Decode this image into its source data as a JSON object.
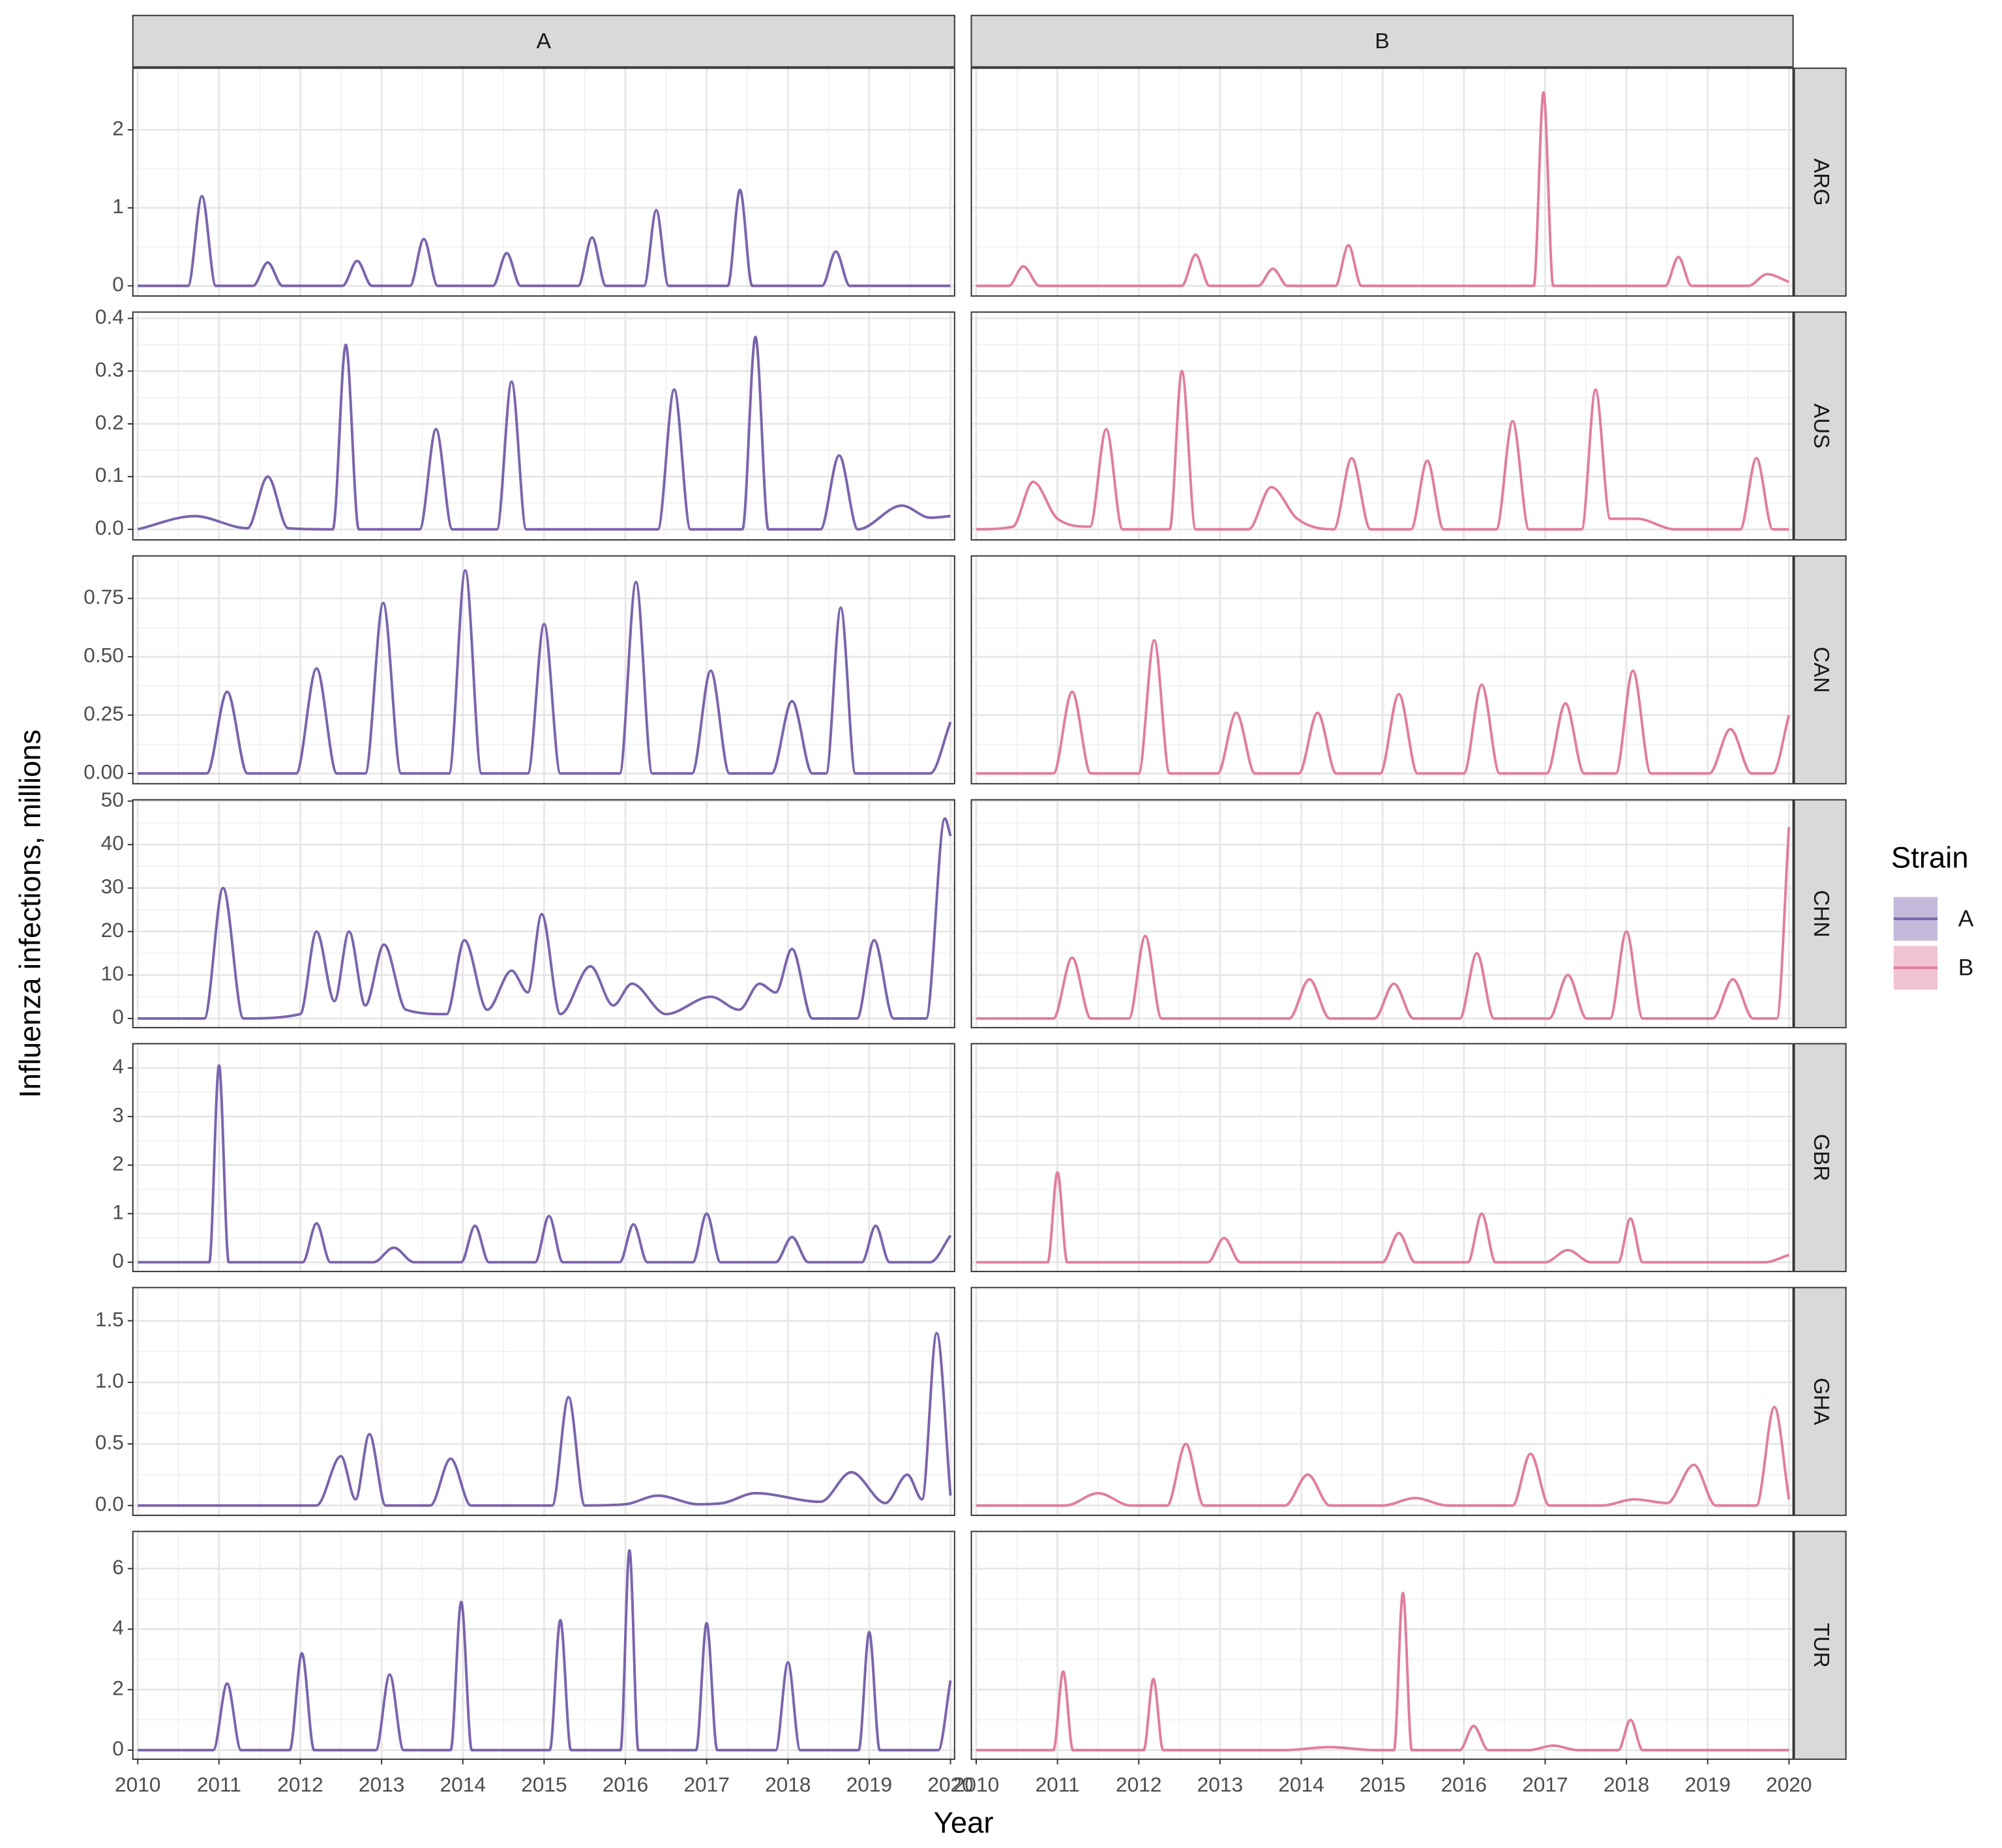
{
  "chart_data": {
    "type": "line",
    "xlabel": "Year",
    "ylabel": "Influenza infections, millions",
    "legend_title": "Strain",
    "xlim": [
      2009.94,
      2020.05
    ],
    "xticks": [
      2010,
      2011,
      2012,
      2013,
      2014,
      2015,
      2016,
      2017,
      2018,
      2019,
      2020
    ],
    "grid": true,
    "series": [
      {
        "name": "A",
        "color": "#7a64ad"
      },
      {
        "name": "B",
        "color": "#e17d9f"
      }
    ],
    "rows": [
      {
        "label": "ARG",
        "ylim": [
          -0.13,
          2.79
        ],
        "yticks": [
          0,
          1,
          2
        ],
        "panels": [
          {
            "x": [
              2010,
              2010.62,
              2010.79,
              2010.96,
              2011.42,
              2011.6,
              2011.78,
              2012.52,
              2012.7,
              2012.88,
              2013.35,
              2013.52,
              2013.69,
              2014.37,
              2014.54,
              2014.71,
              2015.42,
              2015.59,
              2015.76,
              2016.23,
              2016.38,
              2016.53,
              2017.26,
              2017.41,
              2017.56,
              2018.42,
              2018.59,
              2018.76,
              2020
            ],
            "values": [
              0,
              0,
              1.15,
              0,
              0,
              0.3,
              0,
              0,
              0.32,
              0,
              0,
              0.6,
              0,
              0,
              0.42,
              0,
              0,
              0.62,
              0,
              0,
              0.97,
              0,
              0,
              1.23,
              0,
              0,
              0.44,
              0,
              0
            ]
          },
          {
            "x": [
              2010,
              2010.4,
              2010.58,
              2010.78,
              2012.53,
              2012.7,
              2012.87,
              2013.47,
              2013.65,
              2013.83,
              2014.42,
              2014.58,
              2014.74,
              2016.86,
              2016.98,
              2017.1,
              2018.48,
              2018.64,
              2018.8,
              2019.5,
              2019.73,
              2020
            ],
            "values": [
              0,
              0,
              0.25,
              0,
              0,
              0.4,
              0,
              0,
              0.22,
              0,
              0,
              0.52,
              0,
              0,
              2.48,
              0,
              0,
              0.37,
              0,
              0,
              0.15,
              0.05
            ]
          }
        ]
      },
      {
        "label": "AUS",
        "ylim": [
          -0.02,
          0.412
        ],
        "yticks": [
          {
            "value": 0,
            "label": "0.0"
          },
          {
            "value": 0.1,
            "label": "0.1"
          },
          {
            "value": 0.2,
            "label": "0.2"
          },
          {
            "value": 0.3,
            "label": "0.3"
          },
          {
            "value": 0.4,
            "label": "0.4"
          }
        ],
        "panels": [
          {
            "x": [
              2010,
              2010.7,
              2011.35,
              2011.6,
              2011.85,
              2012.4,
              2012.56,
              2012.72,
              2013.47,
              2013.67,
              2013.87,
              2014.42,
              2014.6,
              2014.78,
              2016.4,
              2016.6,
              2016.8,
              2017.44,
              2017.6,
              2017.76,
              2018.4,
              2018.63,
              2018.86,
              2019.4,
              2019.75,
              2020
            ],
            "values": [
              0,
              0.025,
              0.002,
              0.1,
              0.002,
              0,
              0.35,
              0,
              0,
              0.19,
              0,
              0,
              0.28,
              0,
              0,
              0.265,
              0,
              0,
              0.365,
              0,
              0,
              0.14,
              0,
              0.045,
              0.022,
              0.025
            ]
          },
          {
            "x": [
              2010,
              2010.45,
              2010.7,
              2011.0,
              2011.4,
              2011.6,
              2011.8,
              2012.38,
              2012.53,
              2012.7,
              2013.35,
              2013.63,
              2013.95,
              2014.4,
              2014.62,
              2014.85,
              2015.35,
              2015.55,
              2015.75,
              2016.4,
              2016.6,
              2016.8,
              2017.45,
              2017.62,
              2017.8,
              2018.13,
              2018.6,
              2019.4,
              2019.6,
              2019.8,
              2020
            ],
            "values": [
              0,
              0.005,
              0.09,
              0.02,
              0.005,
              0.19,
              0,
              0,
              0.3,
              0,
              0,
              0.08,
              0.02,
              0,
              0.135,
              0,
              0,
              0.13,
              0,
              0,
              0.205,
              0,
              0,
              0.265,
              0.02,
              0.02,
              0,
              0,
              0.135,
              0,
              0
            ]
          }
        ]
      },
      {
        "label": "CAN",
        "ylim": [
          -0.044,
          0.932
        ],
        "yticks": [
          {
            "value": 0,
            "label": "0.00"
          },
          {
            "value": 0.25,
            "label": "0.25"
          },
          {
            "value": 0.5,
            "label": "0.50"
          },
          {
            "value": 0.75,
            "label": "0.75"
          }
        ],
        "panels": [
          {
            "x": [
              2010,
              2010.85,
              2011.1,
              2011.35,
              2011.95,
              2012.2,
              2012.45,
              2012.8,
              2013.02,
              2013.24,
              2013.83,
              2014.03,
              2014.23,
              2014.8,
              2015.0,
              2015.2,
              2015.93,
              2016.13,
              2016.33,
              2016.82,
              2017.05,
              2017.28,
              2017.8,
              2018.05,
              2018.3,
              2018.47,
              2018.65,
              2018.83,
              2019.75,
              2020
            ],
            "values": [
              0,
              0,
              0.35,
              0,
              0,
              0.45,
              0,
              0,
              0.73,
              0,
              0,
              0.87,
              0,
              0,
              0.64,
              0,
              0,
              0.82,
              0,
              0,
              0.44,
              0,
              0,
              0.31,
              0,
              0,
              0.71,
              0,
              0,
              0.22
            ]
          },
          {
            "x": [
              2010,
              2010.95,
              2011.18,
              2011.41,
              2012.0,
              2012.19,
              2012.38,
              2012.97,
              2013.2,
              2013.43,
              2013.97,
              2014.2,
              2014.43,
              2014.97,
              2015.2,
              2015.43,
              2016.0,
              2016.22,
              2016.44,
              2017.02,
              2017.25,
              2017.48,
              2017.87,
              2018.08,
              2018.3,
              2019.02,
              2019.28,
              2019.54,
              2019.8,
              2020
            ],
            "values": [
              0,
              0,
              0.35,
              0,
              0,
              0.57,
              0,
              0,
              0.26,
              0,
              0,
              0.26,
              0,
              0,
              0.34,
              0,
              0,
              0.38,
              0,
              0,
              0.3,
              0,
              0,
              0.44,
              0,
              0,
              0.19,
              0,
              0,
              0.25
            ]
          }
        ]
      },
      {
        "label": "CHN",
        "ylim": [
          -2.1,
          50.3
        ],
        "yticks": [
          0,
          10,
          20,
          30,
          40,
          50
        ],
        "panels": [
          {
            "x": [
              2010,
              2010.82,
              2011.05,
              2011.3,
              2012.0,
              2012.2,
              2012.42,
              2012.6,
              2012.8,
              2013.03,
              2013.3,
              2013.8,
              2014.02,
              2014.3,
              2014.6,
              2014.8,
              2014.97,
              2015.2,
              2015.57,
              2015.85,
              2016.08,
              2016.5,
              2017.05,
              2017.4,
              2017.65,
              2017.85,
              2018.05,
              2018.3,
              2018.85,
              2019.06,
              2019.3,
              2019.7,
              2019.93,
              2020
            ],
            "values": [
              0,
              0,
              30,
              0,
              1,
              20,
              4,
              20,
              3,
              17,
              2,
              1,
              18,
              2,
              11,
              6,
              24,
              1,
              12,
              3,
              8,
              1,
              5,
              2,
              8,
              6,
              16,
              0,
              0,
              18,
              0,
              0,
              46,
              42
            ]
          },
          {
            "x": [
              2010,
              2010.95,
              2011.18,
              2011.41,
              2011.88,
              2012.08,
              2012.28,
              2013.85,
              2014.1,
              2014.35,
              2014.9,
              2015.14,
              2015.38,
              2015.95,
              2016.16,
              2016.37,
              2017.05,
              2017.28,
              2017.51,
              2017.8,
              2018.0,
              2018.2,
              2019.06,
              2019.31,
              2019.56,
              2019.85,
              2020
            ],
            "values": [
              0,
              0,
              14,
              0,
              0,
              19,
              0,
              0,
              9,
              0,
              0,
              8,
              0,
              0,
              15,
              0,
              0,
              10,
              0,
              0,
              20,
              0,
              0,
              9,
              0,
              0,
              44
            ]
          }
        ]
      },
      {
        "label": "GBR",
        "ylim": [
          -0.19,
          4.5
        ],
        "yticks": [
          0,
          1,
          2,
          3,
          4
        ],
        "panels": [
          {
            "x": [
              2010,
              2010.88,
              2011.0,
              2011.12,
              2012.03,
              2012.2,
              2012.37,
              2012.9,
              2013.15,
              2013.4,
              2013.98,
              2014.15,
              2014.32,
              2014.89,
              2015.06,
              2015.23,
              2015.93,
              2016.1,
              2016.27,
              2016.83,
              2017.0,
              2017.17,
              2017.85,
              2018.05,
              2018.25,
              2018.91,
              2019.08,
              2019.25,
              2019.75,
              2020
            ],
            "values": [
              0,
              0,
              4.05,
              0,
              0,
              0.8,
              0,
              0,
              0.3,
              0,
              0,
              0.75,
              0,
              0,
              0.95,
              0,
              0,
              0.78,
              0,
              0,
              1.0,
              0,
              0,
              0.52,
              0,
              0,
              0.75,
              0,
              0,
              0.55
            ]
          },
          {
            "x": [
              2010,
              2010.88,
              2011.0,
              2011.12,
              2012.85,
              2013.05,
              2013.25,
              2015.0,
              2015.2,
              2015.4,
              2016.05,
              2016.22,
              2016.39,
              2017.0,
              2017.28,
              2017.56,
              2017.9,
              2018.05,
              2018.2,
              2019.7,
              2020
            ],
            "values": [
              0,
              0,
              1.85,
              0,
              0,
              0.5,
              0,
              0,
              0.6,
              0,
              0,
              1.0,
              0,
              0,
              0.25,
              0,
              0,
              0.9,
              0,
              0,
              0.15
            ]
          }
        ]
      },
      {
        "label": "GHA",
        "ylim": [
          -0.08,
          1.77
        ],
        "yticks": [
          {
            "value": 0,
            "label": "0.0"
          },
          {
            "value": 0.5,
            "label": "0.5"
          },
          {
            "value": 1,
            "label": "1.0"
          },
          {
            "value": 1.5,
            "label": "1.5"
          }
        ],
        "panels": [
          {
            "x": [
              2010,
              2012.2,
              2012.5,
              2012.68,
              2012.85,
              2013.05,
              2013.6,
              2013.85,
              2014.1,
              2015.1,
              2015.3,
              2015.5,
              2016.0,
              2016.4,
              2016.9,
              2017.2,
              2017.6,
              2018.4,
              2018.78,
              2019.2,
              2019.47,
              2019.65,
              2019.83,
              2020
            ],
            "values": [
              0,
              0,
              0.4,
              0.05,
              0.58,
              0,
              0,
              0.38,
              0,
              0,
              0.88,
              0,
              0.01,
              0.08,
              0.01,
              0.02,
              0.1,
              0.03,
              0.27,
              0.02,
              0.25,
              0.05,
              1.4,
              0.08
            ]
          },
          {
            "x": [
              2010,
              2011.1,
              2011.5,
              2011.9,
              2012.35,
              2012.58,
              2012.8,
              2013.8,
              2014.08,
              2014.35,
              2015.0,
              2015.4,
              2015.8,
              2016.6,
              2016.82,
              2017.05,
              2017.7,
              2018.1,
              2018.5,
              2018.83,
              2019.1,
              2019.6,
              2019.82,
              2020
            ],
            "values": [
              0,
              0,
              0.1,
              0,
              0,
              0.5,
              0,
              0,
              0.25,
              0,
              0,
              0.06,
              0,
              0,
              0.42,
              0,
              0,
              0.05,
              0.02,
              0.33,
              0,
              0,
              0.8,
              0.05
            ]
          }
        ]
      },
      {
        "label": "TUR",
        "ylim": [
          -0.3,
          7.23
        ],
        "yticks": [
          0,
          2,
          4,
          6
        ],
        "panels": [
          {
            "x": [
              2010,
              2010.93,
              2011.1,
              2011.27,
              2011.87,
              2012.02,
              2012.17,
              2012.93,
              2013.1,
              2013.27,
              2013.85,
              2013.98,
              2014.11,
              2015.07,
              2015.2,
              2015.33,
              2015.94,
              2016.05,
              2016.16,
              2016.87,
              2017.0,
              2017.13,
              2017.85,
              2018.0,
              2018.15,
              2018.87,
              2019.0,
              2019.13,
              2019.85,
              2020
            ],
            "values": [
              0,
              0,
              2.2,
              0,
              0,
              3.2,
              0,
              0,
              2.5,
              0,
              0,
              4.9,
              0,
              0,
              4.3,
              0,
              0,
              6.6,
              0,
              0,
              4.2,
              0,
              0,
              2.9,
              0,
              0,
              3.9,
              0,
              0,
              2.3
            ]
          },
          {
            "x": [
              2010,
              2010.95,
              2011.07,
              2011.19,
              2012.06,
              2012.18,
              2012.3,
              2013.8,
              2014.35,
              2014.9,
              2015.14,
              2015.25,
              2015.36,
              2015.95,
              2016.12,
              2016.3,
              2016.8,
              2017.1,
              2017.4,
              2017.9,
              2018.05,
              2018.2,
              2020
            ],
            "values": [
              0,
              0,
              2.6,
              0,
              0,
              2.35,
              0,
              0,
              0.1,
              0,
              0,
              5.2,
              0,
              0,
              0.8,
              0,
              0,
              0.15,
              0,
              0,
              1.0,
              0,
              0
            ]
          }
        ]
      }
    ]
  }
}
